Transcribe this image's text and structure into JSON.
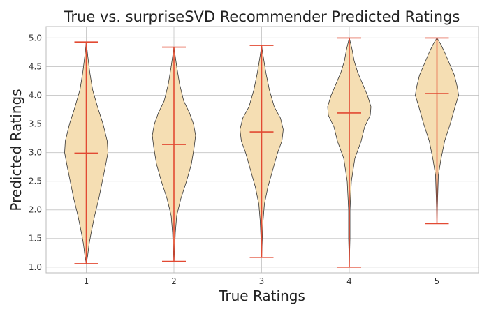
{
  "chart_data": {
    "type": "violin",
    "title": "True vs. surpriseSVD Recommender Predicted Ratings",
    "xlabel": "True Ratings",
    "ylabel": "Predicted Ratings",
    "categories": [
      "1",
      "2",
      "3",
      "4",
      "5"
    ],
    "ylim": [
      0.9,
      5.2
    ],
    "yticks": [
      "1.0",
      "1.5",
      "2.0",
      "2.5",
      "3.0",
      "3.5",
      "4.0",
      "4.5",
      "5.0"
    ],
    "grid": true,
    "violins": [
      {
        "category": "1",
        "min": 1.06,
        "max": 4.93,
        "mean": 2.99
      },
      {
        "category": "2",
        "min": 1.1,
        "max": 4.84,
        "mean": 3.14
      },
      {
        "category": "3",
        "min": 1.17,
        "max": 4.87,
        "mean": 3.36
      },
      {
        "category": "4",
        "min": 1.0,
        "max": 5.0,
        "mean": 3.69
      },
      {
        "category": "5",
        "min": 1.76,
        "max": 5.0,
        "mean": 4.03
      }
    ],
    "colors": {
      "violin_fill": "#F5DEB3",
      "violin_edge": "#333333",
      "stat_lines": "#E24A33",
      "grid": "#CCCCCC",
      "frame": "#BBBBBB"
    }
  }
}
